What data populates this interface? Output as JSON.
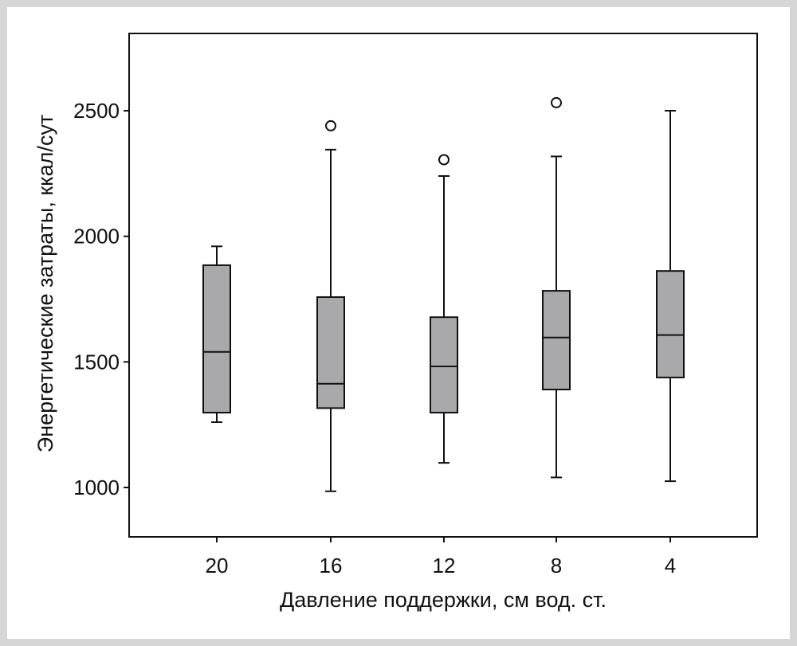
{
  "chart_data": {
    "type": "boxplot",
    "xlabel": "Давление поддержки, см вод. ст.",
    "ylabel": "Энергетические затраты, ккал/сут",
    "categories": [
      "20",
      "16",
      "12",
      "8",
      "4"
    ],
    "yticks": [
      1000,
      1500,
      2000,
      2500
    ],
    "ylim": [
      800,
      2800
    ],
    "grid": false,
    "box_color": "#a9a9ab",
    "line_color": "#111111",
    "boxes": [
      {
        "category": "20",
        "whisker_low": 1260,
        "q1": 1298,
        "median": 1540,
        "q3": 1885,
        "whisker_high": 1960,
        "outliers": []
      },
      {
        "category": "16",
        "whisker_low": 985,
        "q1": 1316,
        "median": 1413,
        "q3": 1758,
        "whisker_high": 2345,
        "outliers": [
          2440
        ]
      },
      {
        "category": "12",
        "whisker_low": 1098,
        "q1": 1298,
        "median": 1482,
        "q3": 1678,
        "whisker_high": 2240,
        "outliers": [
          2305
        ]
      },
      {
        "category": "8",
        "whisker_low": 1040,
        "q1": 1390,
        "median": 1597,
        "q3": 1783,
        "whisker_high": 2318,
        "outliers": [
          2532
        ]
      },
      {
        "category": "4",
        "whisker_low": 1025,
        "q1": 1438,
        "median": 1607,
        "q3": 1862,
        "whisker_high": 2500,
        "outliers": []
      }
    ]
  }
}
